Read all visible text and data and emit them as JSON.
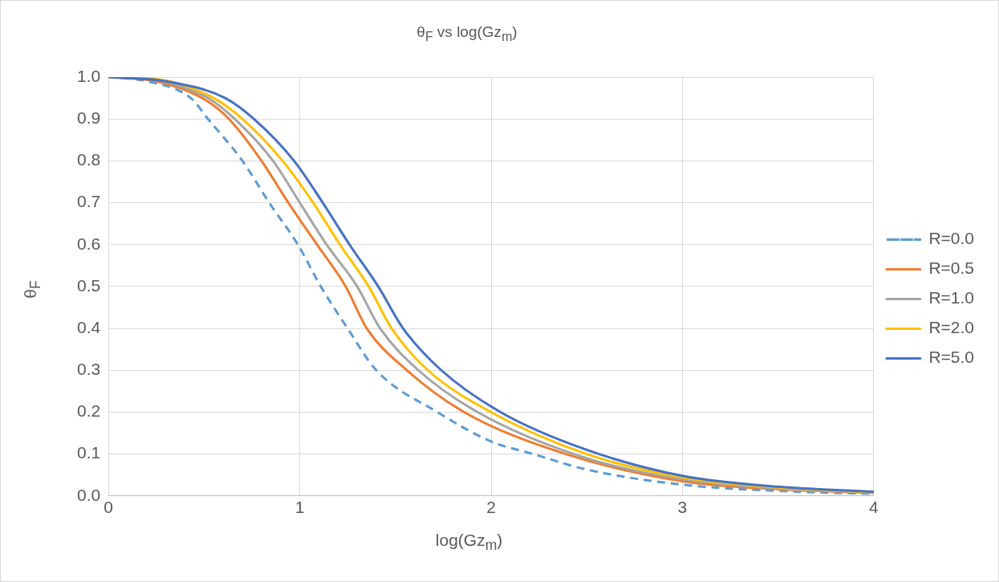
{
  "chart_data": {
    "type": "line",
    "title": "θ$_{F}$ vs log(Gz$_{m}$)",
    "xlabel": "log(Gz$_{m}$)",
    "ylabel": "θ$_{F}$",
    "series": [
      {
        "name": "R=0.0",
        "color": "#5b9bd5",
        "line_style": "dashed",
        "x": [
          0,
          0.2,
          0.43,
          0.52,
          0.7,
          0.84,
          0.99,
          1.11,
          1.25,
          1.4,
          1.72,
          2,
          2.22,
          2.5,
          3,
          3.5,
          4
        ],
        "values": [
          1,
          0.99,
          0.95,
          0.9,
          0.8,
          0.7,
          0.6,
          0.5,
          0.4,
          0.3,
          0.2,
          0.13,
          0.1,
          0.063,
          0.027,
          0.012,
          0.005
        ]
      },
      {
        "name": "R=0.5",
        "color": "#ed7d31",
        "x": [
          0,
          0.25,
          0.49,
          0.63,
          0.8,
          0.94,
          1.09,
          1.24,
          1.35,
          1.56,
          1.86,
          2.39,
          3,
          3.5,
          4
        ],
        "values": [
          1,
          0.99,
          0.95,
          0.9,
          0.8,
          0.7,
          0.6,
          0.5,
          0.4,
          0.3,
          0.2,
          0.1,
          0.035,
          0.016,
          0.007
        ]
      },
      {
        "name": "R=1.0",
        "color": "#a5a5a5",
        "x": [
          0,
          0.25,
          0.52,
          0.66,
          0.86,
          1,
          1.14,
          1.3,
          1.42,
          1.62,
          1.93,
          2.5,
          3,
          3.5,
          4
        ],
        "values": [
          1,
          0.993,
          0.95,
          0.9,
          0.8,
          0.7,
          0.6,
          0.5,
          0.4,
          0.3,
          0.2,
          0.09,
          0.04,
          0.018,
          0.008
        ]
      },
      {
        "name": "R=2.0",
        "color": "#ffc000",
        "x": [
          0,
          0.25,
          0.55,
          0.7,
          0.91,
          1.07,
          1.21,
          1.36,
          1.48,
          1.67,
          2,
          2.5,
          3,
          3.5,
          4
        ],
        "values": [
          1,
          0.995,
          0.95,
          0.9,
          0.8,
          0.7,
          0.6,
          0.5,
          0.4,
          0.3,
          0.2,
          0.1,
          0.044,
          0.02,
          0.009
        ]
      },
      {
        "name": "R=5.0",
        "color": "#4472c4",
        "x": [
          0,
          0.3,
          0.61,
          0.76,
          0.97,
          1.12,
          1.26,
          1.41,
          1.54,
          1.74,
          2.05,
          2.5,
          3,
          3.5,
          4
        ],
        "values": [
          1,
          0.99,
          0.95,
          0.9,
          0.8,
          0.7,
          0.6,
          0.5,
          0.4,
          0.3,
          0.2,
          0.11,
          0.048,
          0.022,
          0.01
        ]
      }
    ],
    "xlim": [
      0,
      4
    ],
    "xticks": [
      0,
      1,
      2,
      3,
      4
    ],
    "ylim": [
      0,
      1
    ],
    "yticks": [
      {
        "value": 0,
        "label": "0.0"
      },
      {
        "value": 0.1,
        "label": "0.1"
      },
      {
        "value": 0.2,
        "label": "0.2"
      },
      {
        "value": 0.3,
        "label": "0.3"
      },
      {
        "value": 0.4,
        "label": "0.4"
      },
      {
        "value": 0.5,
        "label": "0.5"
      },
      {
        "value": 0.6,
        "label": "0.6"
      },
      {
        "value": 0.7,
        "label": "0.7"
      },
      {
        "value": 0.8,
        "label": "0.8"
      },
      {
        "value": 0.9,
        "label": "0.9"
      },
      {
        "value": 1,
        "label": "1.0"
      }
    ],
    "grid": true,
    "legend": "right",
    "marker": "none"
  }
}
